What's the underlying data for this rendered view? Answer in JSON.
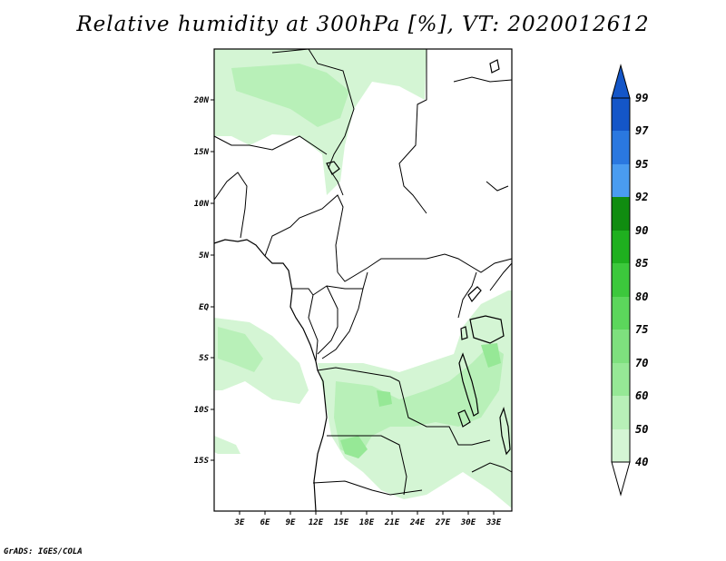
{
  "title": "Relative humidity at 300hPa [%], VT: 2020012612",
  "credit": "GrADS: IGES/COLA",
  "map": {
    "variable": "Relative humidity",
    "level": "300hPa",
    "units": "%",
    "valid_time": "2020012612",
    "lat_labels": [
      "20N",
      "15N",
      "10N",
      "5N",
      "EQ",
      "5S",
      "10S",
      "15S"
    ],
    "lon_labels": [
      "3E",
      "6E",
      "9E",
      "12E",
      "15E",
      "18E",
      "21E",
      "24E",
      "27E",
      "30E",
      "33E"
    ]
  },
  "colorbar": {
    "levels": [
      "40",
      "50",
      "60",
      "70",
      "75",
      "80",
      "85",
      "90",
      "92",
      "95",
      "97",
      "99"
    ],
    "colors": [
      "#f0fff0",
      "#d4f5d4",
      "#b8f0b8",
      "#96e896",
      "#7ee07e",
      "#5cd65c",
      "#3cc83c",
      "#1fb01f",
      "#108c10",
      "#4a9cf0",
      "#2a78e0",
      "#1456c8"
    ]
  },
  "colors": {
    "background": "#ffffff",
    "frame": "#000000",
    "humidity_light": "#d4f5d4",
    "humidity_mid": "#b8f0b8",
    "humidity_dark": "#96e896"
  }
}
